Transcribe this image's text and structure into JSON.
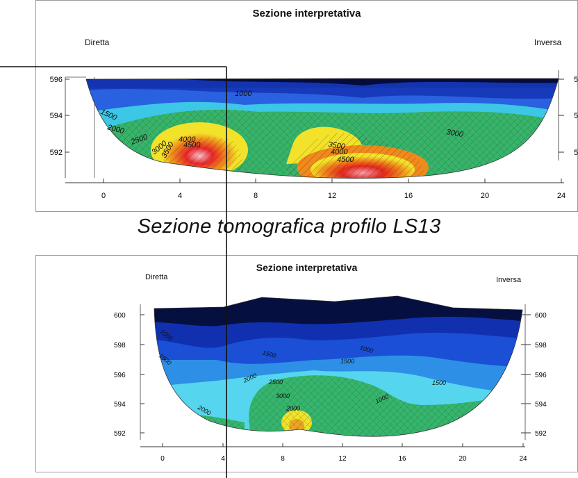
{
  "top_section": {
    "title": "Sezione interpretativa",
    "left_label": "Diretta",
    "right_label": "Inversa",
    "y_ticks": [
      "596",
      "594",
      "592"
    ],
    "x_ticks": [
      "0",
      "4",
      "8",
      "12",
      "16",
      "20",
      "24"
    ],
    "contour_labels": [
      "1000",
      "1500",
      "2000",
      "2500",
      "3000",
      "3500",
      "4000",
      "4500",
      "3500",
      "4000",
      "4500",
      "3000"
    ]
  },
  "caption": "Sezione tomografica profilo LS13",
  "bottom_section": {
    "title": "Sezione interpretativa",
    "left_label": "Diretta",
    "right_label": "Inversa",
    "y_ticks": [
      "600",
      "598",
      "596",
      "594",
      "592"
    ],
    "x_ticks": [
      "0",
      "4",
      "8",
      "12",
      "16",
      "20",
      "24"
    ],
    "contour_labels": [
      "1000",
      "1500",
      "1500",
      "2000",
      "2500",
      "3000",
      "2000",
      "1000",
      "1500",
      "1000",
      "1500",
      "2000"
    ]
  },
  "colors": {
    "low_velocity": "#06103f",
    "blue": "#1a4fd6",
    "cyan": "#3fc8e8",
    "green": "#34b36b",
    "yellow": "#f2e22a",
    "orange": "#f08a1c",
    "red": "#e3261e",
    "pink": "#f7b9c2"
  }
}
